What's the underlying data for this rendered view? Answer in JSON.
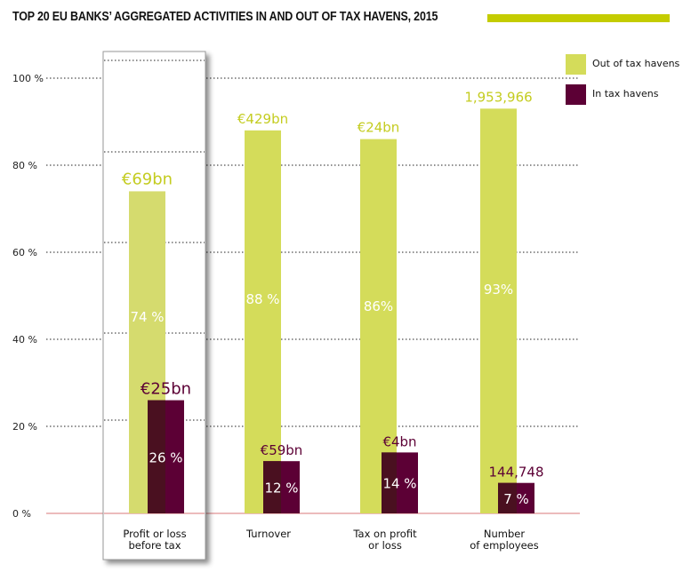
{
  "title": "TOP 20 EU BANKS’ AGGREGATED ACTIVITIES IN AND OUT OF TAX HAVENS, 2015",
  "colors": {
    "out": "#d4dc5a",
    "out_highlight": "#d5db6e",
    "in": "#5c0035",
    "in_shade": "#4a1020",
    "out_label": "#c4cc20",
    "accent_bar": "#c4cc00",
    "baseline": "#d9777a"
  },
  "chart_data": {
    "type": "bar",
    "title": "TOP 20 EU BANKS’ AGGREGATED ACTIVITIES IN AND OUT OF TAX HAVENS, 2015",
    "categories": [
      [
        "Profit or loss",
        "before tax"
      ],
      [
        "Turnover"
      ],
      [
        "Tax on profit",
        "or loss"
      ],
      [
        "Number",
        "of employees"
      ]
    ],
    "series": [
      {
        "name": "Out of tax havens",
        "values": [
          74,
          88,
          86,
          93
        ],
        "pct_labels": [
          "74 %",
          "88 %",
          "86%",
          "93%"
        ],
        "value_labels": [
          "€69bn",
          "€429bn",
          "€24bn",
          "1,953,966"
        ]
      },
      {
        "name": "In tax havens",
        "values": [
          26,
          12,
          14,
          7
        ],
        "pct_labels": [
          "26 %",
          "12 %",
          "14 %",
          "7 %"
        ],
        "value_labels": [
          "€25bn",
          "€59bn",
          "€4bn",
          "144,748"
        ]
      }
    ],
    "ylim": [
      0,
      100
    ],
    "yticks": [
      "0 %",
      "20 %",
      "40 %",
      "60 %",
      "80 %",
      "100 %"
    ],
    "grid": true,
    "legend": "top-right",
    "highlighted_category": 0
  }
}
